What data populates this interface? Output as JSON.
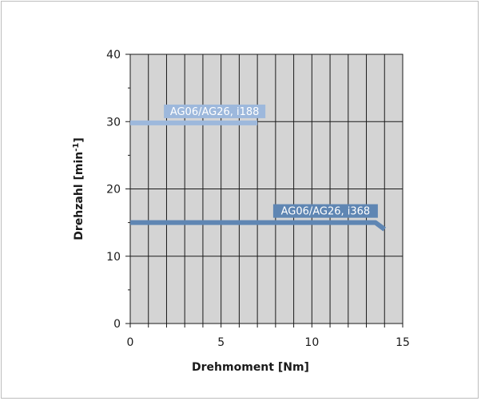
{
  "chart_data": {
    "type": "line",
    "xlabel": "Drehmoment [Nm]",
    "ylabel_main": "Drehzahl [min",
    "ylabel_sup": "-1",
    "ylabel_tail": "]",
    "xlim": [
      0,
      15
    ],
    "ylim": [
      0,
      40
    ],
    "xticks": [
      0,
      5,
      10,
      15
    ],
    "yticks": [
      0,
      10,
      20,
      30,
      40
    ],
    "grid": true,
    "minor_x_step": 1,
    "series": [
      {
        "name": "AG06/AG26, i188",
        "color": "#9db8dc",
        "x": [
          0,
          7
        ],
        "y": [
          29.8,
          29.8
        ]
      },
      {
        "name": "AG06/AG26, i368",
        "color": "#5f86b3",
        "x": [
          0,
          13.5,
          14
        ],
        "y": [
          15,
          15,
          14
        ]
      }
    ]
  }
}
